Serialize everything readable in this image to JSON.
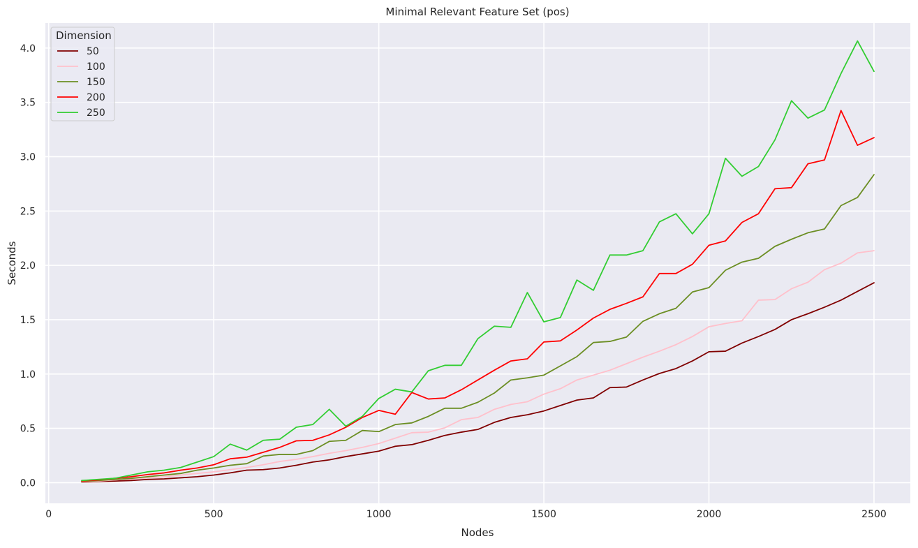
{
  "chart_data": {
    "type": "line",
    "title": "Minimal Relevant Feature Set (pos)",
    "xlabel": "Nodes",
    "ylabel": "Seconds",
    "xlim": [
      -10,
      2610
    ],
    "ylim": [
      -0.19,
      4.23
    ],
    "xticks": [
      0,
      500,
      1000,
      1500,
      2000,
      2500
    ],
    "yticks": [
      0.0,
      0.5,
      1.0,
      1.5,
      2.0,
      2.5,
      3.0,
      3.5,
      4.0
    ],
    "ytick_labels": [
      "0.0",
      "0.5",
      "1.0",
      "1.5",
      "2.0",
      "2.5",
      "3.0",
      "3.5",
      "4.0"
    ],
    "grid": true,
    "background": "#eaeaf2",
    "legend": {
      "title": "Dimension",
      "position": "top-left"
    },
    "x": [
      100,
      150,
      200,
      250,
      300,
      350,
      400,
      450,
      500,
      550,
      600,
      650,
      700,
      750,
      800,
      850,
      900,
      950,
      1000,
      1050,
      1100,
      1150,
      1200,
      1250,
      1300,
      1350,
      1400,
      1450,
      1500,
      1550,
      1600,
      1650,
      1700,
      1750,
      1800,
      1850,
      1900,
      1950,
      2000,
      2050,
      2100,
      2150,
      2200,
      2250,
      2300,
      2350,
      2400,
      2450,
      2500
    ],
    "series": [
      {
        "name": "50",
        "color": "#800000",
        "values": [
          0.005,
          0.01,
          0.015,
          0.02,
          0.03,
          0.035,
          0.045,
          0.055,
          0.07,
          0.09,
          0.115,
          0.12,
          0.135,
          0.16,
          0.19,
          0.21,
          0.24,
          0.265,
          0.29,
          0.335,
          0.35,
          0.39,
          0.435,
          0.465,
          0.49,
          0.555,
          0.6,
          0.625,
          0.66,
          0.71,
          0.76,
          0.78,
          0.875,
          0.88,
          0.945,
          1.005,
          1.05,
          1.12,
          1.205,
          1.21,
          1.285,
          1.345,
          1.41,
          1.5,
          1.555,
          1.615,
          1.68,
          1.76,
          1.84
        ]
      },
      {
        "name": "100",
        "color": "#ffc0cb",
        "values": [
          0.008,
          0.015,
          0.025,
          0.035,
          0.045,
          0.055,
          0.07,
          0.085,
          0.1,
          0.12,
          0.14,
          0.165,
          0.195,
          0.215,
          0.24,
          0.27,
          0.295,
          0.325,
          0.36,
          0.41,
          0.46,
          0.465,
          0.505,
          0.58,
          0.6,
          0.675,
          0.72,
          0.745,
          0.815,
          0.865,
          0.945,
          0.99,
          1.035,
          1.095,
          1.155,
          1.21,
          1.27,
          1.345,
          1.435,
          1.465,
          1.49,
          1.68,
          1.685,
          1.785,
          1.845,
          1.96,
          2.02,
          2.115,
          2.135
        ]
      },
      {
        "name": "150",
        "color": "#6b8e23",
        "values": [
          0.012,
          0.02,
          0.03,
          0.04,
          0.055,
          0.07,
          0.085,
          0.115,
          0.135,
          0.16,
          0.175,
          0.245,
          0.26,
          0.26,
          0.295,
          0.38,
          0.39,
          0.48,
          0.47,
          0.535,
          0.55,
          0.61,
          0.685,
          0.685,
          0.74,
          0.825,
          0.945,
          0.965,
          0.99,
          1.075,
          1.16,
          1.29,
          1.3,
          1.34,
          1.485,
          1.555,
          1.605,
          1.755,
          1.795,
          1.955,
          2.03,
          2.065,
          2.175,
          2.24,
          2.3,
          2.335,
          2.55,
          2.625,
          2.835
        ]
      },
      {
        "name": "200",
        "color": "#ff0000",
        "values": [
          0.015,
          0.025,
          0.04,
          0.055,
          0.075,
          0.09,
          0.115,
          0.135,
          0.165,
          0.22,
          0.235,
          0.28,
          0.325,
          0.385,
          0.39,
          0.44,
          0.51,
          0.6,
          0.665,
          0.63,
          0.83,
          0.77,
          0.78,
          0.855,
          0.945,
          1.035,
          1.12,
          1.14,
          1.295,
          1.305,
          1.405,
          1.515,
          1.595,
          1.65,
          1.71,
          1.925,
          1.925,
          2.01,
          2.185,
          2.225,
          2.395,
          2.475,
          2.705,
          2.715,
          2.935,
          2.97,
          3.425,
          3.105,
          3.175
        ]
      },
      {
        "name": "250",
        "color": "#32cd32",
        "values": [
          0.02,
          0.03,
          0.04,
          0.07,
          0.1,
          0.115,
          0.14,
          0.19,
          0.24,
          0.355,
          0.3,
          0.39,
          0.4,
          0.51,
          0.535,
          0.675,
          0.52,
          0.61,
          0.775,
          0.86,
          0.835,
          1.03,
          1.08,
          1.08,
          1.325,
          1.44,
          1.43,
          1.75,
          1.48,
          1.52,
          1.865,
          1.77,
          2.095,
          2.095,
          2.135,
          2.4,
          2.475,
          2.29,
          2.475,
          2.985,
          2.82,
          2.91,
          3.155,
          3.515,
          3.355,
          3.43,
          3.765,
          4.065,
          3.785
        ]
      }
    ]
  }
}
